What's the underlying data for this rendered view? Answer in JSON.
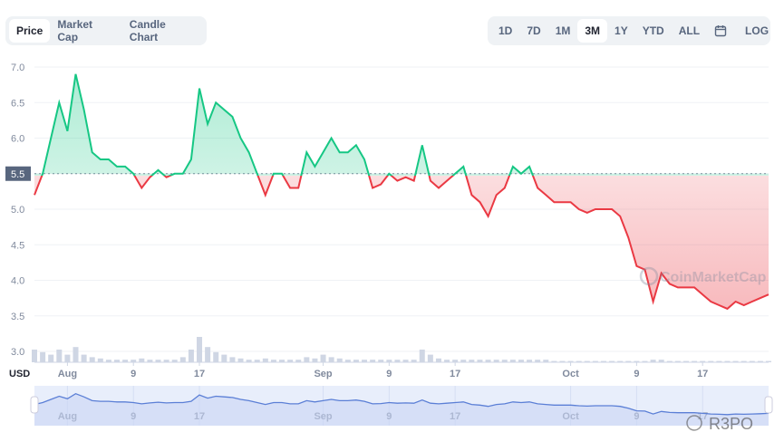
{
  "tabs": [
    "Price",
    "Market Cap",
    "Candle Chart"
  ],
  "active_tab": "Price",
  "ranges": [
    "1D",
    "7D",
    "1M",
    "3M",
    "1Y",
    "YTD",
    "ALL"
  ],
  "active_range": "3M",
  "calendar_icon": "calendar-icon",
  "log_label": "LOG",
  "watermark": "CoinMarketCap",
  "corner_watermark": "R3PO",
  "colors": {
    "up": "#16c784",
    "down": "#ea3943",
    "nav": "#5b7fd6"
  },
  "chart_data": {
    "type": "line",
    "title": "",
    "xlabel": "",
    "ylabel": "USD",
    "ylim": [
      3.0,
      7.0
    ],
    "yticks": [
      "7.0",
      "6.5",
      "6.0",
      "5.5",
      "5.0",
      "4.5",
      "4.0",
      "3.5",
      "3.0"
    ],
    "reference_value": 5.5,
    "reference_label": "5.5",
    "x_start": "Jul 28",
    "x_end": "Oct 26",
    "xticks": [
      {
        "label": "Aug",
        "day": 4
      },
      {
        "label": "9",
        "day": 12
      },
      {
        "label": "17",
        "day": 20
      },
      {
        "label": "Sep",
        "day": 35
      },
      {
        "label": "9",
        "day": 43
      },
      {
        "label": "17",
        "day": 51
      },
      {
        "label": "Oct",
        "day": 65
      },
      {
        "label": "9",
        "day": 73
      },
      {
        "label": "17",
        "day": 81
      }
    ],
    "values": [
      5.2,
      5.5,
      6.0,
      6.5,
      6.1,
      6.9,
      6.4,
      5.8,
      5.7,
      5.7,
      5.6,
      5.6,
      5.5,
      5.3,
      5.45,
      5.55,
      5.45,
      5.5,
      5.5,
      5.7,
      6.7,
      6.2,
      6.5,
      6.4,
      6.3,
      6.0,
      5.8,
      5.5,
      5.2,
      5.5,
      5.5,
      5.3,
      5.3,
      5.8,
      5.6,
      5.8,
      6.0,
      5.8,
      5.8,
      5.9,
      5.7,
      5.3,
      5.35,
      5.5,
      5.4,
      5.45,
      5.4,
      5.9,
      5.4,
      5.3,
      5.4,
      5.5,
      5.6,
      5.2,
      5.1,
      4.9,
      5.2,
      5.3,
      5.6,
      5.5,
      5.6,
      5.3,
      5.2,
      5.1,
      5.1,
      5.1,
      5.0,
      4.95,
      5.0,
      5.0,
      5.0,
      4.9,
      4.6,
      4.2,
      4.15,
      3.7,
      4.1,
      3.95,
      3.9,
      3.9,
      3.9,
      3.8,
      3.7,
      3.65,
      3.6,
      3.7,
      3.65,
      3.7,
      3.75,
      3.8
    ],
    "volume": [
      0.5,
      0.4,
      0.3,
      0.5,
      0.3,
      0.6,
      0.3,
      0.2,
      0.15,
      0.1,
      0.1,
      0.1,
      0.1,
      0.15,
      0.1,
      0.1,
      0.1,
      0.1,
      0.2,
      0.5,
      1.0,
      0.6,
      0.4,
      0.3,
      0.2,
      0.15,
      0.1,
      0.1,
      0.15,
      0.1,
      0.1,
      0.1,
      0.1,
      0.2,
      0.15,
      0.3,
      0.2,
      0.15,
      0.1,
      0.1,
      0.1,
      0.1,
      0.1,
      0.1,
      0.1,
      0.1,
      0.1,
      0.5,
      0.3,
      0.15,
      0.1,
      0.1,
      0.1,
      0.1,
      0.1,
      0.1,
      0.1,
      0.1,
      0.1,
      0.1,
      0.1,
      0.1,
      0.1,
      0.05,
      0.05,
      0.05,
      0.05,
      0.05,
      0.05,
      0.05,
      0.05,
      0.05,
      0.05,
      0.05,
      0.05,
      0.1,
      0.1,
      0.05,
      0.05,
      0.05,
      0.05,
      0.05,
      0.05,
      0.05,
      0.05,
      0.05,
      0.05,
      0.05,
      0.05,
      0.05
    ]
  }
}
